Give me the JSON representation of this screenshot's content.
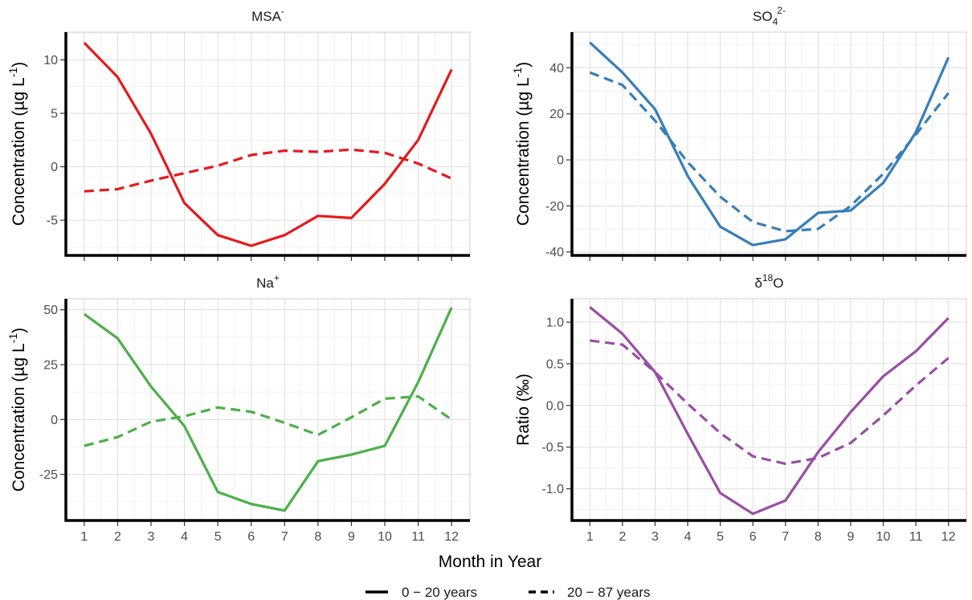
{
  "figure": {
    "xlabel": "Month in Year",
    "legend": {
      "placement": "bottom",
      "items": [
        {
          "label": "0 − 20 years",
          "dash": "solid"
        },
        {
          "label": "20 − 87 years",
          "dash": "dashed"
        }
      ]
    }
  },
  "chart_data": [
    {
      "type": "line",
      "title": {
        "base": "MSA",
        "sup": "-",
        "sub": ""
      },
      "ylabel": {
        "text": "Concentration (µg L",
        "sup": "-1",
        "close": ")"
      },
      "color": "#e41a1c",
      "x": [
        1,
        2,
        3,
        4,
        5,
        6,
        7,
        8,
        9,
        10,
        11,
        12
      ],
      "xlim": [
        0.45,
        12.55
      ],
      "ylim": [
        -8.3,
        12.6
      ],
      "yticks": [
        -5,
        0,
        5,
        10
      ],
      "ytick_labels": [
        "-5",
        "0",
        "5",
        "10"
      ],
      "grid": true,
      "series": [
        {
          "style": "solid",
          "values": [
            11.6,
            8.4,
            3.1,
            -3.4,
            -6.4,
            -7.4,
            -6.4,
            -4.6,
            -4.8,
            -1.6,
            2.5,
            9.1
          ]
        },
        {
          "style": "dashed",
          "values": [
            -2.3,
            -2.1,
            -1.3,
            -0.6,
            0.1,
            1.1,
            1.5,
            1.4,
            1.6,
            1.3,
            0.3,
            -1.1
          ]
        }
      ]
    },
    {
      "type": "line",
      "title": {
        "base": "SO",
        "sup": "2-",
        "sub": "4"
      },
      "ylabel": {
        "text": "Concentration (µg L",
        "sup": "-1",
        "close": ")"
      },
      "color": "#377eb8",
      "x": [
        1,
        2,
        3,
        4,
        5,
        6,
        7,
        8,
        9,
        10,
        11,
        12
      ],
      "xlim": [
        0.45,
        12.55
      ],
      "ylim": [
        -41.5,
        55.5
      ],
      "yticks": [
        -40,
        -20,
        0,
        20,
        40
      ],
      "ytick_labels": [
        "-40",
        "-20",
        "0",
        "20",
        "40"
      ],
      "grid": true,
      "series": [
        {
          "style": "solid",
          "values": [
            51,
            38,
            22,
            -7,
            -29,
            -37,
            -34.5,
            -23,
            -22,
            -10,
            12,
            44.5
          ]
        },
        {
          "style": "dashed",
          "values": [
            38,
            32.5,
            17,
            -1,
            -16,
            -27,
            -31,
            -30,
            -20,
            -6,
            11,
            29
          ]
        }
      ]
    },
    {
      "type": "line",
      "title": {
        "base": "Na",
        "sup": "+",
        "sub": ""
      },
      "ylabel": {
        "text": "Concentration (µg L",
        "sup": "-1",
        "close": ")"
      },
      "color": "#4daf4a",
      "x": [
        1,
        2,
        3,
        4,
        5,
        6,
        7,
        8,
        9,
        10,
        11,
        12
      ],
      "xlim": [
        0.45,
        12.55
      ],
      "ylim": [
        -46,
        55
      ],
      "yticks": [
        -25,
        0,
        25,
        50
      ],
      "ytick_labels": [
        "-25",
        "0",
        "25",
        "50"
      ],
      "grid": true,
      "series": [
        {
          "style": "solid",
          "values": [
            48,
            37,
            15,
            -3,
            -33,
            -38.5,
            -41.5,
            -19,
            -16,
            -12,
            17,
            51
          ]
        },
        {
          "style": "dashed",
          "values": [
            -12,
            -8,
            -1,
            1.5,
            5.5,
            3.5,
            -1.5,
            -7,
            1,
            9.5,
            10.5,
            0
          ]
        }
      ]
    },
    {
      "type": "line",
      "title": {
        "base": "δ",
        "sup": "18",
        "sub": "",
        "after": "O"
      },
      "ylabel": {
        "text": "Ratio (‰)",
        "sup": "",
        "close": ""
      },
      "color": "#984ea3",
      "x": [
        1,
        2,
        3,
        4,
        5,
        6,
        7,
        8,
        9,
        10,
        11,
        12
      ],
      "xlim": [
        0.45,
        12.55
      ],
      "ylim": [
        -1.38,
        1.28
      ],
      "yticks": [
        -1.0,
        -0.5,
        0.0,
        0.5,
        1.0
      ],
      "ytick_labels": [
        "-1.0",
        "-0.5",
        "0.0",
        "0.5",
        "1.0"
      ],
      "grid": true,
      "series": [
        {
          "style": "solid",
          "values": [
            1.18,
            0.86,
            0.4,
            -0.34,
            -1.05,
            -1.3,
            -1.14,
            -0.56,
            -0.08,
            0.35,
            0.65,
            1.05
          ]
        },
        {
          "style": "dashed",
          "values": [
            0.78,
            0.73,
            0.4,
            0.02,
            -0.33,
            -0.61,
            -0.7,
            -0.63,
            -0.45,
            -0.12,
            0.24,
            0.57
          ]
        }
      ]
    }
  ]
}
